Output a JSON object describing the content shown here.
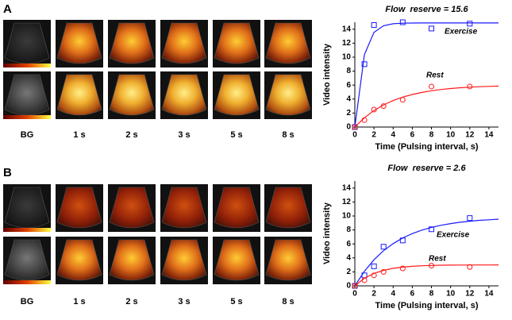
{
  "panels": [
    {
      "letter": "A",
      "image_labels": [
        "BG",
        "1 s",
        "2 s",
        "3 s",
        "5 s",
        "8 s"
      ]
    },
    {
      "letter": "B",
      "image_labels": [
        "BG",
        "1 s",
        "2 s",
        "3 s",
        "5 s",
        "8 s"
      ]
    }
  ],
  "chart_data": [
    {
      "type": "scatter",
      "title": "Flow  reserve = 15.6",
      "xlabel": "Time (Pulsing interval, s)",
      "ylabel": "Video intensity",
      "xlim": [
        0,
        15
      ],
      "ylim": [
        0,
        15
      ],
      "xticks": [
        0,
        2,
        4,
        6,
        8,
        10,
        12,
        14
      ],
      "yticks": [
        0,
        2,
        4,
        6,
        8,
        10,
        12,
        14
      ],
      "series": [
        {
          "name": "Exercise",
          "color": "#1a1aff",
          "marker": "square",
          "x": [
            0,
            1,
            2,
            5,
            8,
            12
          ],
          "values": [
            0,
            9,
            14.6,
            15,
            14.1,
            14.8
          ],
          "fit_x": [
            0,
            1,
            2,
            3,
            4,
            5,
            6,
            7,
            8,
            9,
            10,
            11,
            12,
            13,
            14,
            15
          ],
          "fit_values": [
            0,
            10.38,
            13.54,
            14.5,
            14.78,
            14.86,
            14.89,
            14.9,
            14.9,
            14.9,
            14.9,
            14.9,
            14.9,
            14.9,
            14.9,
            14.9
          ]
        },
        {
          "name": "Rest",
          "color": "#ff1a1a",
          "marker": "circle",
          "x": [
            0,
            1,
            2,
            3,
            5,
            8,
            12
          ],
          "values": [
            0,
            1,
            2.5,
            3,
            3.9,
            5.8,
            5.8
          ],
          "fit_x": [
            0,
            1,
            2,
            3,
            4,
            5,
            6,
            7,
            8,
            9,
            10,
            11,
            12,
            13,
            14,
            15
          ],
          "fit_values": [
            0,
            1.33,
            2.36,
            3.17,
            3.79,
            4.28,
            4.66,
            4.96,
            5.19,
            5.37,
            5.51,
            5.62,
            5.7,
            5.77,
            5.82,
            5.86
          ]
        }
      ]
    },
    {
      "type": "scatter",
      "title": "Flow  reserve = 2.6",
      "xlabel": "Time (Pulsing interval, s)",
      "ylabel": "Video intensity",
      "xlim": [
        0,
        15
      ],
      "ylim": [
        0,
        15
      ],
      "xticks": [
        0,
        2,
        4,
        6,
        8,
        10,
        12,
        14
      ],
      "yticks": [
        0,
        2,
        4,
        6,
        8,
        10,
        12,
        14
      ],
      "series": [
        {
          "name": "Exercise",
          "color": "#1a1aff",
          "marker": "square",
          "x": [
            0,
            1,
            2,
            3,
            5,
            8,
            12
          ],
          "values": [
            0,
            1.5,
            2.8,
            5.6,
            6.5,
            8.1,
            9.7
          ],
          "fit_x": [
            0,
            1,
            2,
            3,
            4,
            5,
            6,
            7,
            8,
            9,
            10,
            11,
            12,
            13,
            14,
            15
          ],
          "fit_values": [
            0,
            2.09,
            3.73,
            5.03,
            6.05,
            6.85,
            7.48,
            7.98,
            8.36,
            8.67,
            8.91,
            9.1,
            9.25,
            9.37,
            9.46,
            9.54
          ]
        },
        {
          "name": "Rest",
          "color": "#ff1a1a",
          "marker": "circle",
          "x": [
            0,
            1,
            2,
            3,
            5,
            8,
            12
          ],
          "values": [
            0,
            0.8,
            1.5,
            2,
            2.5,
            2.9,
            2.7
          ],
          "fit_x": [
            0,
            1,
            2,
            3,
            4,
            5,
            6,
            7,
            8,
            9,
            10,
            11,
            12,
            13,
            14,
            15
          ],
          "fit_values": [
            0,
            1.09,
            1.78,
            2.22,
            2.51,
            2.68,
            2.8,
            2.87,
            2.92,
            2.95,
            2.97,
            2.98,
            2.99,
            2.99,
            2.99,
            3
          ]
        }
      ]
    }
  ]
}
